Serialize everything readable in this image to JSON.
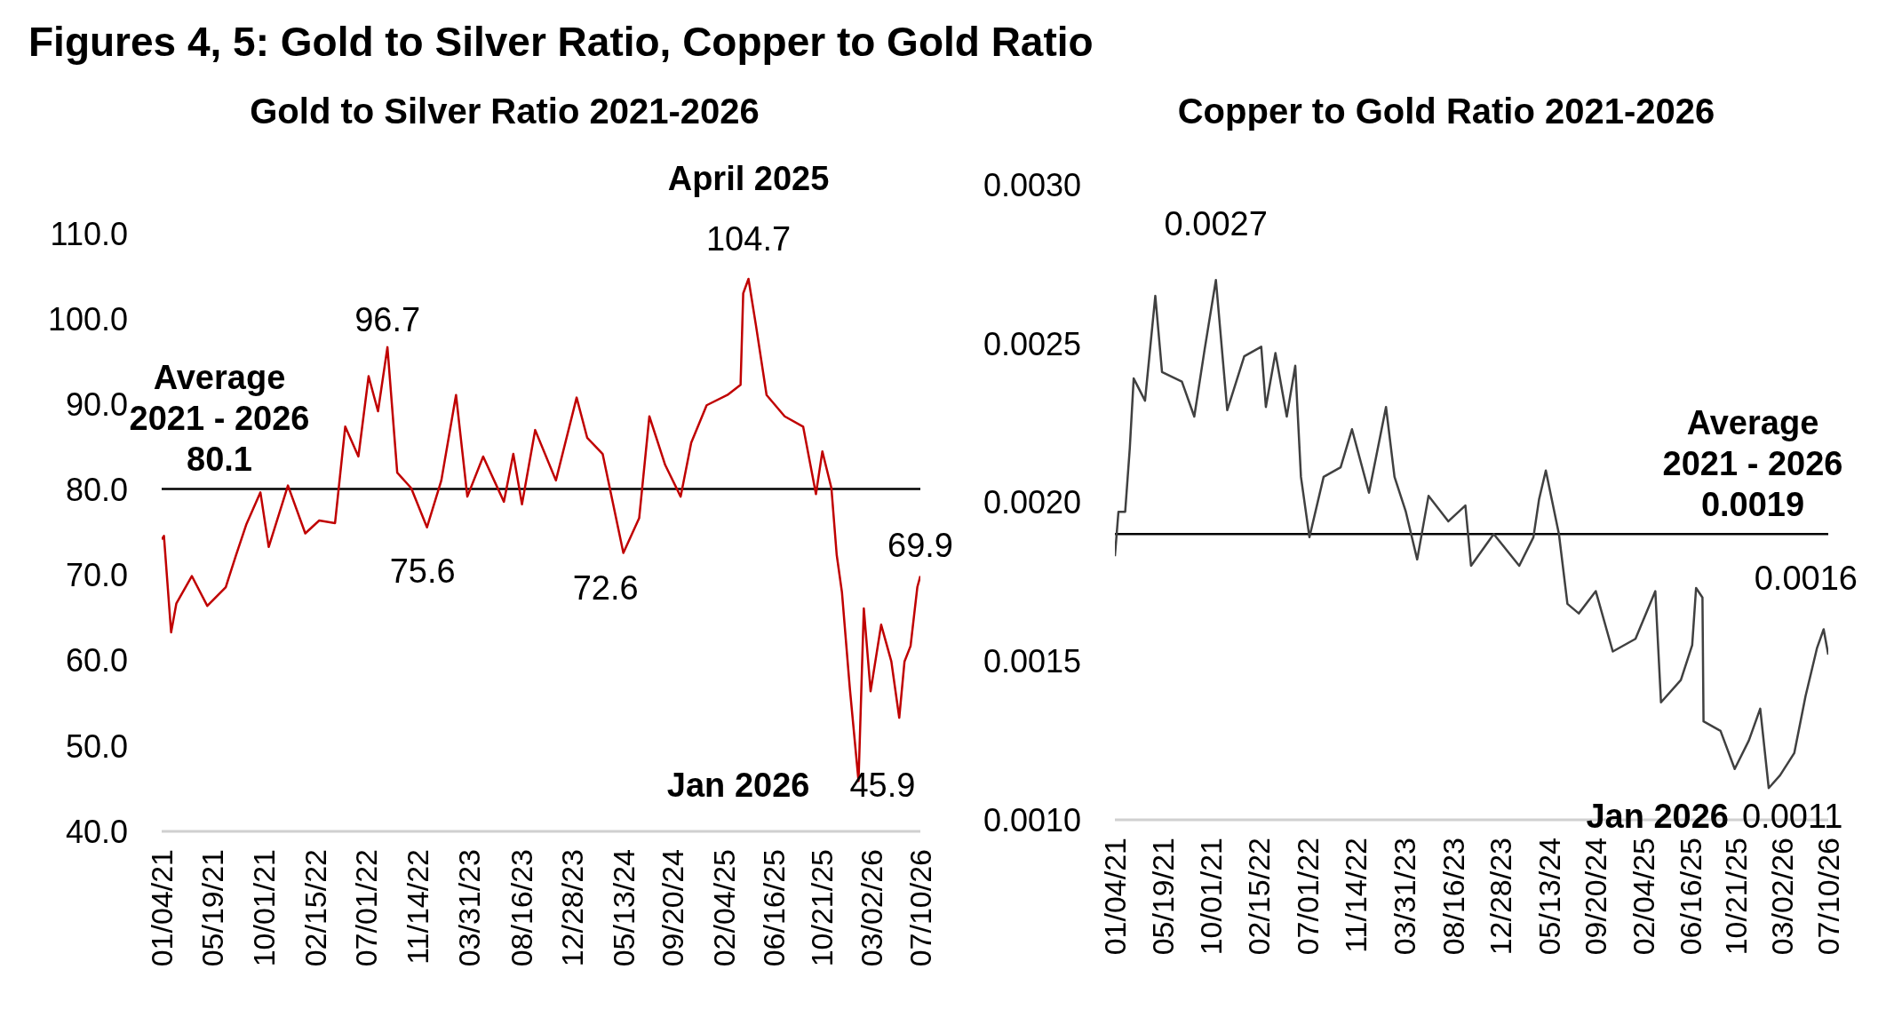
{
  "chart_data": [
    {
      "type": "line",
      "title": "Gold to Silver Ratio 2021-2026",
      "annotations": [
        "Figures 4, 5: Gold to Silver Ratio, Copper to Gold Ratio",
        {
          "text": "96.7",
          "x": "2022-08-26",
          "y": 96.7
        },
        {
          "text": "75.6",
          "x": "2022-12-09",
          "y": 75.6
        },
        {
          "text": "72.6",
          "x": "2024-05-13",
          "y": 72.6
        },
        {
          "text": "April 2025",
          "x": "2025-04-10",
          "y": 104.7
        },
        {
          "text": "104.7",
          "x": "2025-04-10",
          "y": 104.7
        },
        {
          "text": "Jan 2026",
          "x": "2026-01-27",
          "y": 45.9
        },
        {
          "text": "45.9",
          "x": "2026-01-27",
          "y": 45.9
        },
        {
          "text": "69.9",
          "x": "2026-07-10",
          "y": 69.9
        }
      ],
      "x": [
        "2021-01-04",
        "2021-01-10",
        "2021-01-29",
        "2021-02-12",
        "2021-03-25",
        "2021-05-05",
        "2021-06-23",
        "2021-07-20",
        "2021-08-17",
        "2021-09-23",
        "2021-10-15",
        "2021-12-05",
        "2022-01-20",
        "2022-02-26",
        "2022-04-09",
        "2022-05-06",
        "2022-06-10",
        "2022-07-07",
        "2022-08-01",
        "2022-08-26",
        "2022-09-21",
        "2022-10-28",
        "2022-12-09",
        "2023-01-16",
        "2023-02-24",
        "2023-03-26",
        "2023-05-07",
        "2023-07-01",
        "2023-07-26",
        "2023-08-18",
        "2023-09-22",
        "2023-11-16",
        "2024-01-10",
        "2024-02-07",
        "2024-03-19",
        "2024-05-13",
        "2024-06-24",
        "2024-07-21",
        "2024-09-01",
        "2024-10-12",
        "2024-11-09",
        "2024-12-20",
        "2025-02-13",
        "2025-03-20",
        "2025-03-27",
        "2025-04-10",
        "2025-04-30",
        "2025-05-28",
        "2025-07-15",
        "2025-09-02",
        "2025-10-06",
        "2025-10-23",
        "2025-11-16",
        "2025-11-30",
        "2025-12-14",
        "2026-01-04",
        "2026-01-27",
        "2026-02-10",
        "2026-02-28",
        "2026-03-28",
        "2026-04-24",
        "2026-05-15",
        "2026-05-29",
        "2026-06-14",
        "2026-07-02",
        "2026-07-10"
      ],
      "series": [
        {
          "color": "#c00000",
          "values": [
            74.2,
            74.6,
            63.3,
            66.7,
            69.9,
            66.4,
            68.6,
            72.3,
            76,
            79.7,
            73.3,
            80.5,
            74.9,
            76.4,
            76.1,
            87.4,
            83.9,
            93.3,
            89.2,
            96.7,
            82,
            80.2,
            75.6,
            81.1,
            91.1,
            79.2,
            83.9,
            78.6,
            84.2,
            78.3,
            87,
            81.1,
            90.8,
            86.1,
            84.2,
            72.6,
            76.7,
            88.6,
            82.9,
            79.2,
            85.5,
            89.9,
            91.1,
            92.3,
            103,
            104.7,
            99.2,
            91.1,
            88.6,
            87.4,
            79.5,
            84.5,
            80.2,
            72.4,
            68,
            56.7,
            45.9,
            66.1,
            56.4,
            64.2,
            59.9,
            53.3,
            59.9,
            61.7,
            68.6,
            69.9
          ]
        }
      ],
      "xlim": [
        "2021-01-04",
        "2026-07-10"
      ],
      "xticks": [
        {
          "value": "2021-01-04",
          "label": "01/04/21"
        },
        {
          "value": "2021-05-19",
          "label": "05/19/21"
        },
        {
          "value": "2021-10-01",
          "label": "10/01/21"
        },
        {
          "value": "2022-02-15",
          "label": "02/15/22"
        },
        {
          "value": "2022-07-01",
          "label": "07/01/22"
        },
        {
          "value": "2022-11-14",
          "label": "11/14/22"
        },
        {
          "value": "2023-03-31",
          "label": "03/31/23"
        },
        {
          "value": "2023-08-16",
          "label": "08/16/23"
        },
        {
          "value": "2023-12-28",
          "label": "12/28/23"
        },
        {
          "value": "2024-05-13",
          "label": "05/13/24"
        },
        {
          "value": "2024-09-20",
          "label": "09/20/24"
        },
        {
          "value": "2025-02-04",
          "label": "02/04/25"
        },
        {
          "value": "2025-06-16",
          "label": "06/16/25"
        },
        {
          "value": "2025-10-21",
          "label": "10/21/25"
        },
        {
          "value": "2026-03-02",
          "label": "03/02/26"
        },
        {
          "value": "2026-07-10",
          "label": "07/10/26"
        }
      ],
      "ylim": [
        40,
        110
      ],
      "yticks": [
        {
          "value": 40,
          "label": "40.0"
        },
        {
          "value": 50,
          "label": "50.0"
        },
        {
          "value": 60,
          "label": "60.0"
        },
        {
          "value": 70,
          "label": "70.0"
        },
        {
          "value": 80,
          "label": "80.0"
        },
        {
          "value": 90,
          "label": "90.0"
        },
        {
          "value": 100,
          "label": "100.0"
        },
        {
          "value": 110,
          "label": "110.0"
        }
      ],
      "ref_lines": [
        {
          "axis": "y",
          "value": 80.1,
          "label": "Average\n2021 - 2026\n80.1",
          "color": "#000000"
        }
      ]
    },
    {
      "type": "line",
      "title": "Copper to Gold Ratio 2021-2026",
      "annotations": [
        {
          "text": "0.0027",
          "x": "2021-10-16",
          "y": 0.0027
        },
        {
          "text": "Jan 2026",
          "x": "2026-01-23",
          "y": 0.0011
        },
        {
          "text": "0.0011",
          "x": "2026-01-23",
          "y": 0.0011
        },
        {
          "text": "0.0016",
          "x": "2026-06-27",
          "y": 0.0016
        }
      ],
      "x": [
        "2021-01-04",
        "2021-01-14",
        "2021-02-02",
        "2021-02-15",
        "2021-02-26",
        "2021-03-30",
        "2021-04-28",
        "2021-05-17",
        "2021-07-12",
        "2021-08-16",
        "2021-09-14",
        "2021-10-16",
        "2021-11-17",
        "2022-01-04",
        "2022-02-21",
        "2022-03-06",
        "2022-04-02",
        "2022-05-04",
        "2022-05-28",
        "2022-06-13",
        "2022-07-07",
        "2022-08-16",
        "2022-10-03",
        "2022-11-04",
        "2022-12-22",
        "2023-01-23",
        "2023-02-08",
        "2023-03-04",
        "2023-04-05",
        "2023-05-07",
        "2023-06-08",
        "2023-08-03",
        "2023-09-20",
        "2023-10-06",
        "2023-12-09",
        "2024-02-19",
        "2024-03-30",
        "2024-04-15",
        "2024-05-04",
        "2024-06-10",
        "2024-07-04",
        "2024-08-05",
        "2024-09-22",
        "2024-11-09",
        "2025-01-12",
        "2025-03-09",
        "2025-03-25",
        "2025-05-20",
        "2025-06-21",
        "2025-07-02",
        "2025-07-20",
        "2025-07-23",
        "2025-09-09",
        "2025-10-19",
        "2025-11-28",
        "2025-12-30",
        "2026-01-23",
        "2026-02-24",
        "2026-04-05",
        "2026-05-07",
        "2026-06-08",
        "2026-06-27",
        "2026-07-10"
      ],
      "series": [
        {
          "color": "#404040",
          "values": [
            0.00183,
            0.00197,
            0.00197,
            0.00217,
            0.00239,
            0.00232,
            0.00265,
            0.00241,
            0.00238,
            0.00227,
            0.00248,
            0.0027,
            0.00229,
            0.00246,
            0.00249,
            0.0023,
            0.00247,
            0.00227,
            0.00243,
            0.00208,
            0.00189,
            0.00208,
            0.00211,
            0.00223,
            0.00203,
            0.00221,
            0.0023,
            0.00208,
            0.00197,
            0.00182,
            0.00202,
            0.00194,
            0.00199,
            0.0018,
            0.0019,
            0.0018,
            0.00189,
            0.00201,
            0.0021,
            0.0019,
            0.00168,
            0.00165,
            0.00172,
            0.00153,
            0.00157,
            0.00172,
            0.00137,
            0.00144,
            0.00155,
            0.00173,
            0.0017,
            0.00131,
            0.00128,
            0.00116,
            0.00125,
            0.00135,
            0.0011,
            0.00114,
            0.00121,
            0.00139,
            0.00154,
            0.0016,
            0.00152
          ]
        }
      ],
      "xlim": [
        "2021-01-04",
        "2026-07-10"
      ],
      "xticks": [
        {
          "value": "2021-01-04",
          "label": "01/04/21"
        },
        {
          "value": "2021-05-19",
          "label": "05/19/21"
        },
        {
          "value": "2021-10-01",
          "label": "10/01/21"
        },
        {
          "value": "2022-02-15",
          "label": "02/15/22"
        },
        {
          "value": "2022-07-01",
          "label": "07/01/22"
        },
        {
          "value": "2022-11-14",
          "label": "11/14/22"
        },
        {
          "value": "2023-03-31",
          "label": "03/31/23"
        },
        {
          "value": "2023-08-16",
          "label": "08/16/23"
        },
        {
          "value": "2023-12-28",
          "label": "12/28/23"
        },
        {
          "value": "2024-05-13",
          "label": "05/13/24"
        },
        {
          "value": "2024-09-20",
          "label": "09/20/24"
        },
        {
          "value": "2025-02-04",
          "label": "02/04/25"
        },
        {
          "value": "2025-06-16",
          "label": "06/16/25"
        },
        {
          "value": "2025-10-21",
          "label": "10/21/25"
        },
        {
          "value": "2026-03-02",
          "label": "03/02/26"
        },
        {
          "value": "2026-07-10",
          "label": "07/10/26"
        }
      ],
      "ylim": [
        0.001,
        0.003
      ],
      "yticks": [
        {
          "value": 0.001,
          "label": "0.0010"
        },
        {
          "value": 0.0015,
          "label": "0.0015"
        },
        {
          "value": 0.002,
          "label": "0.0020"
        },
        {
          "value": 0.0025,
          "label": "0.0025"
        },
        {
          "value": 0.003,
          "label": "0.0030"
        }
      ],
      "ref_lines": [
        {
          "axis": "y",
          "value": 0.0019,
          "label": "Average\n2021 - 2026\n0.0019",
          "color": "#000000"
        }
      ]
    }
  ]
}
